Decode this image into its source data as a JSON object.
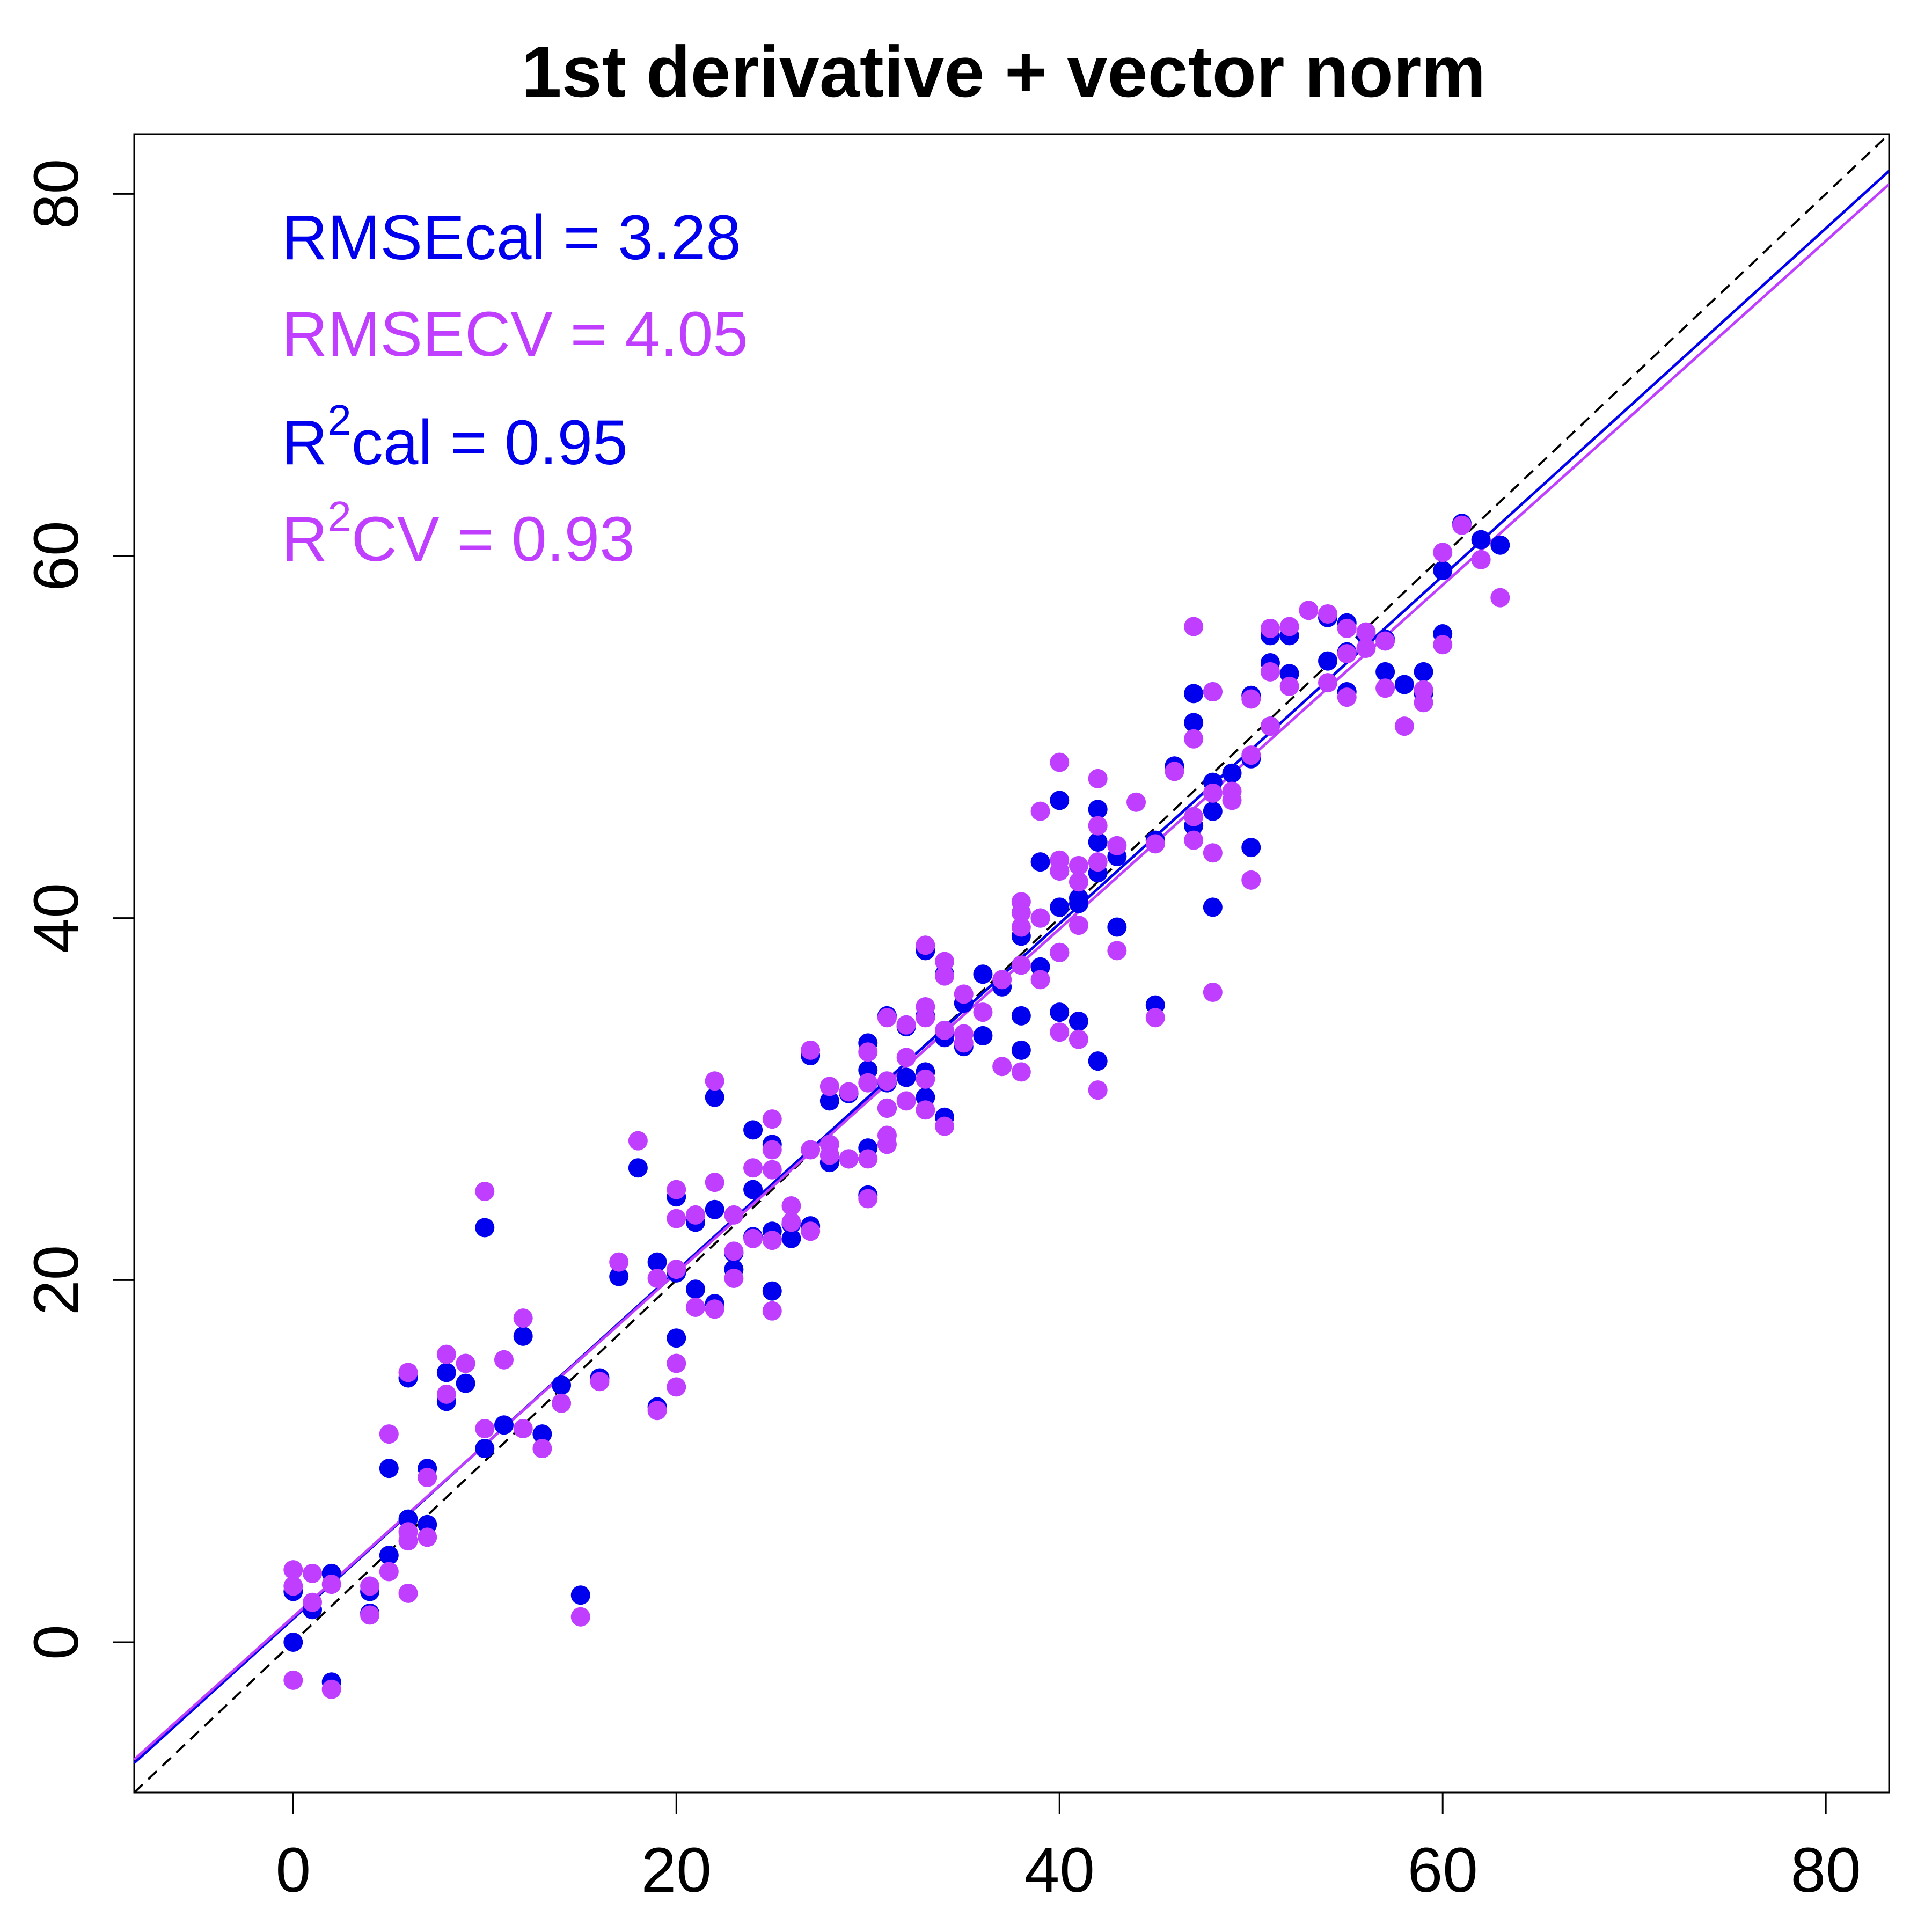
{
  "chart_data": {
    "type": "scatter",
    "title": "1st derivative + vector norm",
    "xlabel": "",
    "ylabel": "",
    "xlim": [
      -8.3,
      83.3
    ],
    "ylim": [
      -8.3,
      83.3
    ],
    "xticks": [
      "0",
      "20",
      "40",
      "60",
      "80"
    ],
    "yticks": [
      "0",
      "20",
      "40",
      "60",
      "80"
    ],
    "grid": false,
    "stats": {
      "rmse_cal": "RMSEcal = 3.28",
      "rmse_cv": "RMSECV = 4.05",
      "r2_cal_prefix": "R",
      "r2_cal_sup": "2",
      "r2_cal_rest": "cal = 0.95",
      "r2_cv_prefix": "R",
      "r2_cv_sup": "2",
      "r2_cv_rest": "CV = 0.93"
    },
    "colors": {
      "cal": "#0000EE",
      "cv": "#BF3EFF",
      "reference": "#000000"
    },
    "reference_line": {
      "style": "dashed",
      "slope": 1,
      "intercept": 0
    },
    "fit_lines": [
      {
        "series": "cal",
        "slope": 0.96,
        "intercept": 1.3
      },
      {
        "series": "cv",
        "slope": 0.95,
        "intercept": 1.4
      }
    ],
    "series": [
      {
        "key": "cal",
        "color": "#0000EE",
        "points": [
          [
            0,
            0
          ],
          [
            0,
            2.8
          ],
          [
            1,
            1.8
          ],
          [
            2,
            3.8
          ],
          [
            2,
            -2.2
          ],
          [
            4,
            2.8
          ],
          [
            4,
            1.6
          ],
          [
            5,
            9.6
          ],
          [
            5,
            4.8
          ],
          [
            6,
            14.6
          ],
          [
            6,
            6.8
          ],
          [
            7,
            6.5
          ],
          [
            7,
            9.6
          ],
          [
            8,
            14.9
          ],
          [
            8,
            13.3
          ],
          [
            9,
            14.3
          ],
          [
            10,
            22.9
          ],
          [
            10,
            10.7
          ],
          [
            11,
            12
          ],
          [
            12,
            16.9
          ],
          [
            13,
            11.5
          ],
          [
            14,
            14.2
          ],
          [
            15,
            2.6
          ],
          [
            16,
            14.6
          ],
          [
            17,
            20.2
          ],
          [
            18,
            26.2
          ],
          [
            19,
            21
          ],
          [
            19,
            13
          ],
          [
            20,
            24.6
          ],
          [
            20,
            16.8
          ],
          [
            20,
            20.4
          ],
          [
            21,
            23.2
          ],
          [
            21,
            19.5
          ],
          [
            22,
            23.9
          ],
          [
            22,
            30.1
          ],
          [
            22,
            18.7
          ],
          [
            23,
            20.6
          ],
          [
            23,
            21.5
          ],
          [
            24,
            28.3
          ],
          [
            24,
            25
          ],
          [
            24,
            22.4
          ],
          [
            25,
            27.5
          ],
          [
            25,
            19.4
          ],
          [
            25,
            22.7
          ],
          [
            26,
            23.1
          ],
          [
            26,
            22.3
          ],
          [
            27,
            32.4
          ],
          [
            27,
            23
          ],
          [
            28,
            29.9
          ],
          [
            28,
            26.5
          ],
          [
            29,
            30.3
          ],
          [
            29,
            26.7
          ],
          [
            30,
            33.1
          ],
          [
            30,
            31.6
          ],
          [
            30,
            27.3
          ],
          [
            30,
            24.7
          ],
          [
            31,
            34.6
          ],
          [
            31,
            30.9
          ],
          [
            31,
            29.5
          ],
          [
            32,
            34
          ],
          [
            32,
            31.2
          ],
          [
            33,
            38.2
          ],
          [
            33,
            34.6
          ],
          [
            33,
            31.5
          ],
          [
            33,
            30.1
          ],
          [
            34,
            36.9
          ],
          [
            34,
            33.4
          ],
          [
            34,
            29
          ],
          [
            35,
            35.3
          ],
          [
            35,
            32.9
          ],
          [
            36,
            36.9
          ],
          [
            36,
            33.5
          ],
          [
            37,
            36.2
          ],
          [
            38,
            39
          ],
          [
            38,
            34.6
          ],
          [
            38,
            32.7
          ],
          [
            39,
            43.1
          ],
          [
            39,
            40
          ],
          [
            39,
            37.3
          ],
          [
            40,
            46.5
          ],
          [
            40,
            42.6
          ],
          [
            40,
            40.6
          ],
          [
            40,
            38.1
          ],
          [
            40,
            34.8
          ],
          [
            41,
            41.1
          ],
          [
            41,
            40.8
          ],
          [
            41,
            34.3
          ],
          [
            42,
            46
          ],
          [
            42,
            44.2
          ],
          [
            42,
            42.5
          ],
          [
            42,
            32.1
          ],
          [
            43,
            43.4
          ],
          [
            43,
            39.5
          ],
          [
            45,
            44.3
          ],
          [
            45,
            35.2
          ],
          [
            46,
            48.4
          ],
          [
            47,
            52.4
          ],
          [
            47,
            50.8
          ],
          [
            47,
            45.1
          ],
          [
            48,
            52.5
          ],
          [
            48,
            47.5
          ],
          [
            48,
            45.9
          ],
          [
            48,
            40.6
          ],
          [
            49,
            48
          ],
          [
            50,
            52.3
          ],
          [
            50,
            48.8
          ],
          [
            50,
            43.9
          ],
          [
            51,
            55.6
          ],
          [
            51,
            54.1
          ],
          [
            51,
            50.6
          ],
          [
            52,
            55.6
          ],
          [
            52,
            53.5
          ],
          [
            54,
            56.6
          ],
          [
            54,
            54.2
          ],
          [
            55,
            56.3
          ],
          [
            55,
            54.7
          ],
          [
            55,
            52.5
          ],
          [
            56,
            55.6
          ],
          [
            57,
            55.4
          ],
          [
            57,
            53.6
          ],
          [
            58,
            52.9
          ],
          [
            59,
            53.6
          ],
          [
            59,
            52.4
          ],
          [
            60,
            59.2
          ],
          [
            60,
            55.7
          ],
          [
            61,
            61.8
          ],
          [
            62,
            60.9
          ],
          [
            63,
            60.6
          ]
        ]
      },
      {
        "key": "cv",
        "color": "#BF3EFF",
        "points": [
          [
            0,
            4
          ],
          [
            0,
            3.1
          ],
          [
            0,
            -2.1
          ],
          [
            1,
            3.8
          ],
          [
            1,
            2.2
          ],
          [
            2,
            3.2
          ],
          [
            2,
            -2.6
          ],
          [
            4,
            3.1
          ],
          [
            4,
            1.5
          ],
          [
            5,
            11.5
          ],
          [
            5,
            3.9
          ],
          [
            6,
            14.9
          ],
          [
            6,
            6.1
          ],
          [
            6,
            5.6
          ],
          [
            6,
            2.7
          ],
          [
            7,
            9.1
          ],
          [
            7,
            5.8
          ],
          [
            8,
            15.9
          ],
          [
            8,
            13.7
          ],
          [
            9,
            15.4
          ],
          [
            10,
            24.9
          ],
          [
            10,
            11.8
          ],
          [
            11,
            15.6
          ],
          [
            12,
            17.9
          ],
          [
            12,
            11.8
          ],
          [
            13,
            10.7
          ],
          [
            14,
            13.2
          ],
          [
            15,
            1.4
          ],
          [
            16,
            14.4
          ],
          [
            17,
            21
          ],
          [
            18,
            27.7
          ],
          [
            19,
            20.1
          ],
          [
            19,
            12.8
          ],
          [
            20,
            25
          ],
          [
            20,
            23.4
          ],
          [
            20,
            20.6
          ],
          [
            20,
            15.4
          ],
          [
            20,
            14.1
          ],
          [
            21,
            23.6
          ],
          [
            21,
            18.5
          ],
          [
            22,
            31
          ],
          [
            22,
            25.4
          ],
          [
            22,
            18.4
          ],
          [
            23,
            23.6
          ],
          [
            23,
            21.6
          ],
          [
            23,
            20.1
          ],
          [
            24,
            26.2
          ],
          [
            24,
            22.3
          ],
          [
            25,
            28.9
          ],
          [
            25,
            27.2
          ],
          [
            25,
            26.1
          ],
          [
            25,
            22.2
          ],
          [
            25,
            18.3
          ],
          [
            26,
            24.1
          ],
          [
            26,
            23.2
          ],
          [
            27,
            32.7
          ],
          [
            27,
            27.2
          ],
          [
            27,
            22.7
          ],
          [
            28,
            30.7
          ],
          [
            28,
            27.5
          ],
          [
            28,
            26.9
          ],
          [
            29,
            30.4
          ],
          [
            29,
            26.7
          ],
          [
            30,
            32.6
          ],
          [
            30,
            30.9
          ],
          [
            30,
            26.7
          ],
          [
            30,
            24.5
          ],
          [
            31,
            34.5
          ],
          [
            31,
            31
          ],
          [
            31,
            29.5
          ],
          [
            31,
            28
          ],
          [
            31,
            27.5
          ],
          [
            32,
            34.1
          ],
          [
            32,
            32.3
          ],
          [
            32,
            29.9
          ],
          [
            33,
            38.5
          ],
          [
            33,
            35.1
          ],
          [
            33,
            34.5
          ],
          [
            33,
            31.1
          ],
          [
            33,
            29.4
          ],
          [
            34,
            37.6
          ],
          [
            34,
            36.8
          ],
          [
            34,
            33.8
          ],
          [
            34,
            28.5
          ],
          [
            35,
            35.8
          ],
          [
            35,
            33.6
          ],
          [
            35,
            33.1
          ],
          [
            36,
            34.8
          ],
          [
            37,
            36.6
          ],
          [
            37,
            31.8
          ],
          [
            38,
            40.9
          ],
          [
            38,
            40.3
          ],
          [
            38,
            39.5
          ],
          [
            38,
            37.4
          ],
          [
            38,
            31.5
          ],
          [
            39,
            45.9
          ],
          [
            39,
            40
          ],
          [
            39,
            36.6
          ],
          [
            40,
            48.6
          ],
          [
            40,
            43.2
          ],
          [
            40,
            42.6
          ],
          [
            40,
            38.1
          ],
          [
            40,
            33.7
          ],
          [
            41,
            42.9
          ],
          [
            41,
            42
          ],
          [
            41,
            39.6
          ],
          [
            41,
            33.3
          ],
          [
            42,
            47.7
          ],
          [
            42,
            45.1
          ],
          [
            42,
            43.1
          ],
          [
            42,
            30.5
          ],
          [
            43,
            44
          ],
          [
            43,
            38.2
          ],
          [
            44,
            46.4
          ],
          [
            45,
            44.1
          ],
          [
            45,
            34.5
          ],
          [
            46,
            48.1
          ],
          [
            47,
            56.1
          ],
          [
            47,
            49.9
          ],
          [
            47,
            45.6
          ],
          [
            47,
            44.3
          ],
          [
            48,
            52.5
          ],
          [
            48,
            46.9
          ],
          [
            48,
            43.6
          ],
          [
            48,
            35.9
          ],
          [
            49,
            47
          ],
          [
            49,
            46.5
          ],
          [
            50,
            52.1
          ],
          [
            50,
            49
          ],
          [
            50,
            42.1
          ],
          [
            51,
            56
          ],
          [
            51,
            53.6
          ],
          [
            51,
            50.6
          ],
          [
            52,
            56.1
          ],
          [
            52,
            52.8
          ],
          [
            53,
            57
          ],
          [
            54,
            56.8
          ],
          [
            54,
            53
          ],
          [
            55,
            56
          ],
          [
            55,
            54.6
          ],
          [
            55,
            52.2
          ],
          [
            56,
            55.8
          ],
          [
            56,
            54.9
          ],
          [
            57,
            55.3
          ],
          [
            57,
            52.7
          ],
          [
            58,
            50.6
          ],
          [
            59,
            52.6
          ],
          [
            59,
            51.9
          ],
          [
            60,
            60.2
          ],
          [
            60,
            55.1
          ],
          [
            61,
            61.7
          ],
          [
            62,
            59.8
          ],
          [
            63,
            57.7
          ]
        ]
      }
    ]
  }
}
